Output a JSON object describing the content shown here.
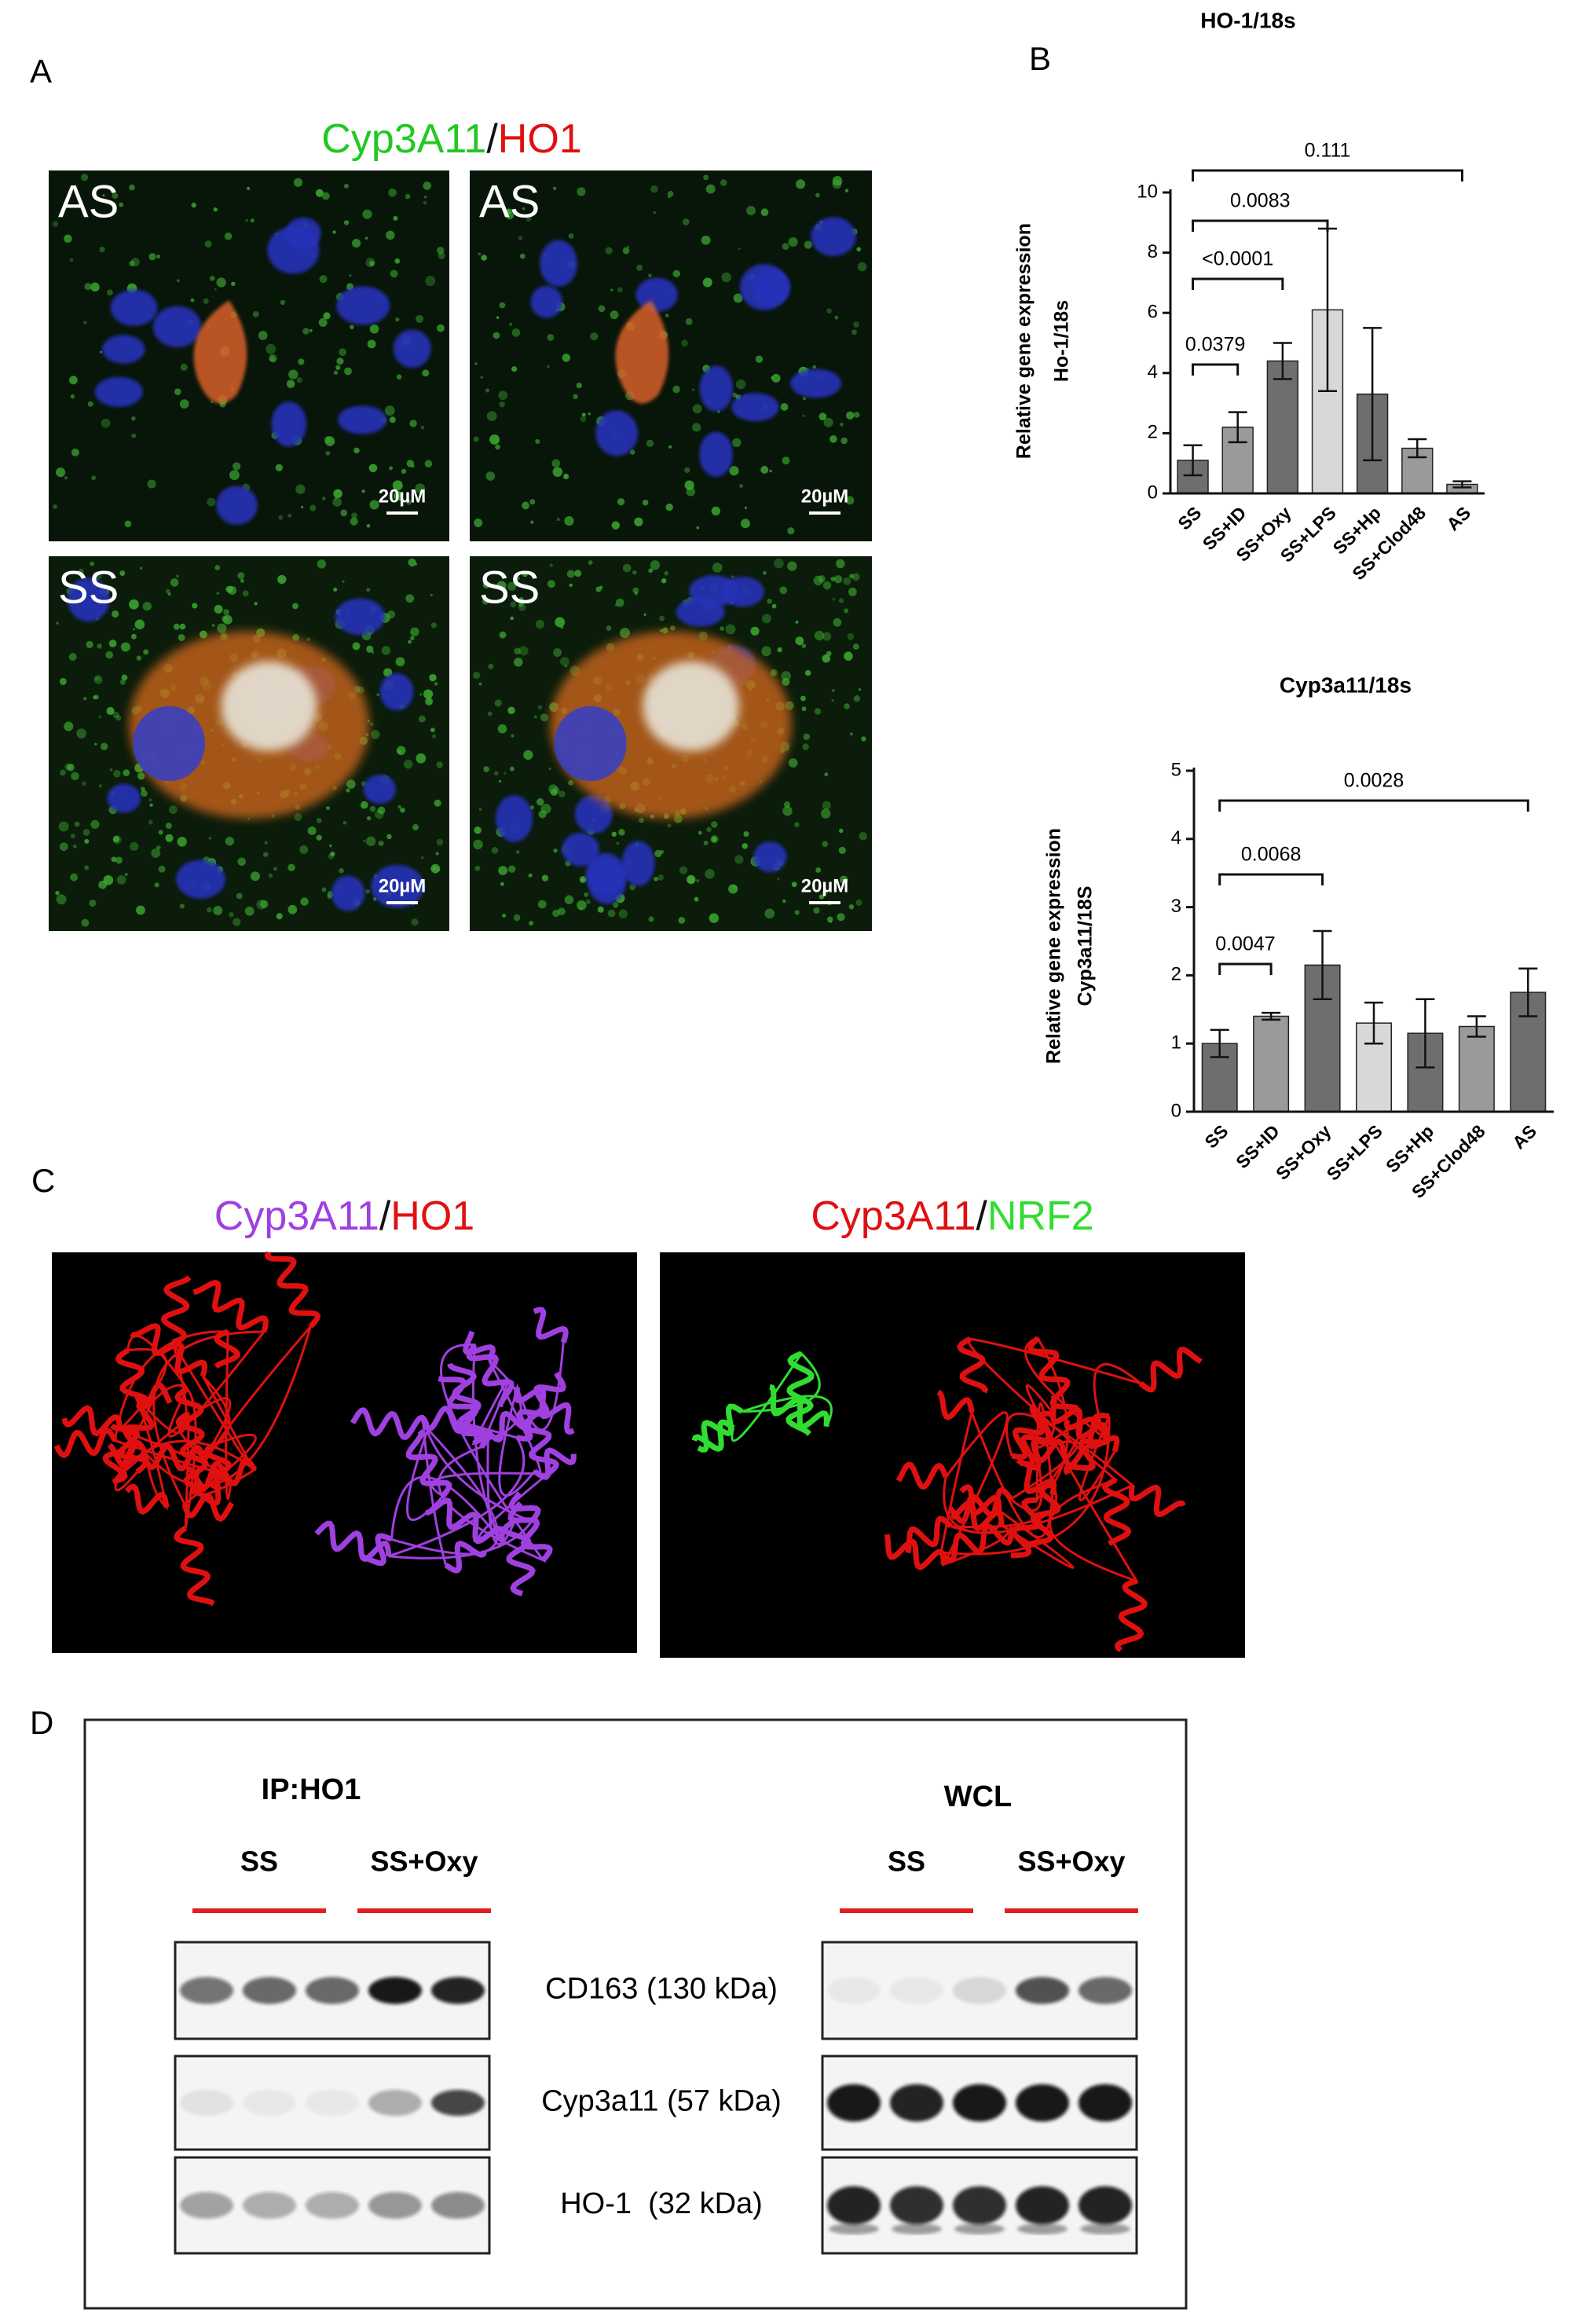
{
  "panels": {
    "a": "A",
    "b": "B",
    "c": "C",
    "d": "D"
  },
  "panel_a": {
    "title_parts": [
      {
        "text": "Cyp3A11",
        "color": "#22c822"
      },
      {
        "text": "/",
        "color": "#111111"
      },
      {
        "text": "HO1",
        "color": "#e01010"
      }
    ],
    "images": [
      {
        "label": "AS",
        "scale": "20µM"
      },
      {
        "label": "AS",
        "scale": "20µM"
      },
      {
        "label": "SS",
        "scale": "20µM"
      },
      {
        "label": "SS",
        "scale": "20µM"
      }
    ]
  },
  "chart_data": [
    {
      "type": "bar",
      "title": "HO-1/18s",
      "y_label": [
        "Relative gene expression",
        "Ho-1/18s"
      ],
      "categories": [
        "SS",
        "SS+ID",
        "SS+Oxy",
        "SS+LPS",
        "SS+Hp",
        "SS+Clod48",
        "AS"
      ],
      "values": [
        1.1,
        2.2,
        4.4,
        6.1,
        3.3,
        1.5,
        0.3
      ],
      "errors": [
        0.5,
        0.5,
        0.6,
        2.7,
        2.2,
        0.3,
        0.1
      ],
      "colors": [
        "#6e6e6e",
        "#9a9a9a",
        "#6e6e6e",
        "#d8d8d8",
        "#6e6e6e",
        "#9a9a9a",
        "#9a9a9a"
      ],
      "ylim": [
        0,
        10
      ],
      "yticks": [
        0,
        2,
        4,
        6,
        8,
        10
      ],
      "comparisons": [
        {
          "from": "SS",
          "to": "SS+ID",
          "label": "0.0379"
        },
        {
          "from": "SS",
          "to": "SS+Oxy",
          "label": "<0.0001"
        },
        {
          "from": "SS",
          "to": "SS+LPS",
          "label": "0.0083"
        },
        {
          "from": "SS",
          "to": "AS",
          "label": "0.111"
        }
      ]
    },
    {
      "type": "bar",
      "title": "Cyp3a11/18s",
      "y_label": [
        "Relative gene expression",
        "Cyp3a11/18S"
      ],
      "categories": [
        "SS",
        "SS+ID",
        "SS+Oxy",
        "SS+LPS",
        "SS+Hp",
        "SS+Clod48",
        "AS"
      ],
      "values": [
        1.0,
        1.4,
        2.15,
        1.3,
        1.15,
        1.25,
        1.75
      ],
      "errors": [
        0.2,
        0.05,
        0.5,
        0.3,
        0.5,
        0.15,
        0.35
      ],
      "colors": [
        "#6e6e6e",
        "#9a9a9a",
        "#6e6e6e",
        "#d8d8d8",
        "#6e6e6e",
        "#9a9a9a",
        "#6e6e6e"
      ],
      "ylim": [
        0,
        5
      ],
      "yticks": [
        0,
        1,
        2,
        3,
        4,
        5
      ],
      "comparisons": [
        {
          "from": "SS",
          "to": "SS+ID",
          "label": "0.0047"
        },
        {
          "from": "SS",
          "to": "SS+Oxy",
          "label": "0.0068"
        },
        {
          "from": "SS",
          "to": "AS",
          "label": "0.0028"
        }
      ]
    }
  ],
  "panel_c": {
    "structures": [
      {
        "title_parts": [
          {
            "text": "Cyp3A11",
            "color": "#a040e0"
          },
          {
            "text": "/",
            "color": "#111111"
          },
          {
            "text": "HO1",
            "color": "#e01010"
          }
        ]
      },
      {
        "title_parts": [
          {
            "text": "Cyp3A11",
            "color": "#e01010"
          },
          {
            "text": "/",
            "color": "#111111"
          },
          {
            "text": "NRF2",
            "color": "#30dd30"
          }
        ]
      }
    ]
  },
  "panel_d": {
    "groups": [
      {
        "title": "IP:HO1",
        "lanes": [
          "SS",
          "SS+Oxy"
        ]
      },
      {
        "title": "WCL",
        "lanes": [
          "SS",
          "SS+Oxy"
        ]
      }
    ],
    "rows": [
      "CD163 (130 kDa)",
      "Cyp3a11 (57 kDa)",
      "HO-1  (32 kDa)"
    ],
    "lane_line_color": "#e02020"
  }
}
